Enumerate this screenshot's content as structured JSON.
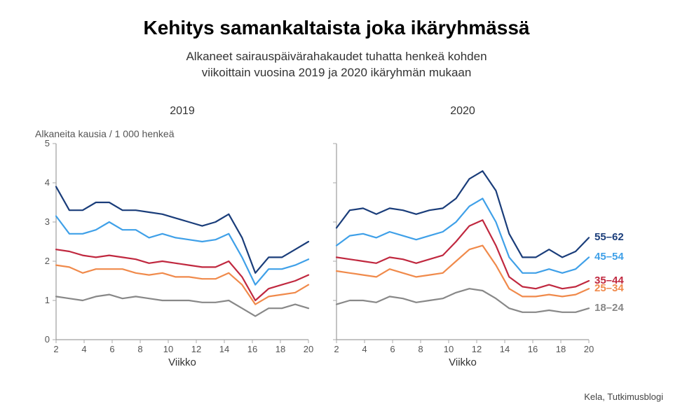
{
  "title": "Kehitys samankaltaista joka ikäryhmässä",
  "subtitle_line1": "Alkaneet sairauspäivärahakaudet tuhatta henkeä kohden",
  "subtitle_line2": "viikoittain vuosina 2019 ja 2020 ikäryhmän mukaan",
  "y_axis_label": "Alkaneita kausia / 1 000 henkeä",
  "x_axis_label": "Viikko",
  "source": "Kela, Tutkimusblogi",
  "ylim": [
    0,
    5
  ],
  "ytick_step": 1,
  "xlim": [
    2,
    20
  ],
  "xtick_step": 2,
  "line_width": 2.2,
  "background_color": "#ffffff",
  "axis_color": "#888888",
  "tick_color": "#aaaaaa",
  "tick_label_color": "#555555",
  "panels": [
    {
      "title": "2019",
      "series": [
        {
          "key": "55-62",
          "values": [
            3.9,
            3.3,
            3.3,
            3.5,
            3.5,
            3.3,
            3.3,
            3.25,
            3.2,
            3.1,
            3.0,
            2.9,
            3.0,
            3.2,
            2.6,
            1.7,
            2.1,
            2.1,
            2.3,
            2.5
          ]
        },
        {
          "key": "45-54",
          "values": [
            3.15,
            2.7,
            2.7,
            2.8,
            3.0,
            2.8,
            2.8,
            2.6,
            2.7,
            2.6,
            2.55,
            2.5,
            2.55,
            2.7,
            2.1,
            1.4,
            1.8,
            1.8,
            1.9,
            2.05
          ]
        },
        {
          "key": "35-44",
          "values": [
            2.3,
            2.25,
            2.15,
            2.1,
            2.15,
            2.1,
            2.05,
            1.95,
            2.0,
            1.95,
            1.9,
            1.85,
            1.85,
            2.0,
            1.6,
            1.0,
            1.3,
            1.4,
            1.5,
            1.65
          ]
        },
        {
          "key": "25-34",
          "values": [
            1.9,
            1.85,
            1.7,
            1.8,
            1.8,
            1.8,
            1.7,
            1.65,
            1.7,
            1.6,
            1.6,
            1.55,
            1.55,
            1.7,
            1.4,
            0.9,
            1.1,
            1.15,
            1.2,
            1.4
          ]
        },
        {
          "key": "18-24",
          "values": [
            1.1,
            1.05,
            1.0,
            1.1,
            1.15,
            1.05,
            1.1,
            1.05,
            1.0,
            1.0,
            1.0,
            0.95,
            0.95,
            1.0,
            0.8,
            0.6,
            0.8,
            0.8,
            0.9,
            0.8
          ]
        }
      ]
    },
    {
      "title": "2020",
      "series": [
        {
          "key": "55-62",
          "values": [
            2.85,
            3.3,
            3.35,
            3.2,
            3.35,
            3.3,
            3.2,
            3.3,
            3.35,
            3.6,
            4.1,
            4.3,
            3.8,
            2.7,
            2.1,
            2.1,
            2.3,
            2.1,
            2.25,
            2.6
          ]
        },
        {
          "key": "45-54",
          "values": [
            2.4,
            2.65,
            2.7,
            2.6,
            2.75,
            2.65,
            2.55,
            2.65,
            2.75,
            3.0,
            3.4,
            3.6,
            3.0,
            2.1,
            1.7,
            1.7,
            1.8,
            1.7,
            1.8,
            2.1
          ]
        },
        {
          "key": "35-44",
          "values": [
            2.1,
            2.05,
            2.0,
            1.95,
            2.1,
            2.05,
            1.95,
            2.05,
            2.15,
            2.5,
            2.9,
            3.05,
            2.4,
            1.6,
            1.35,
            1.3,
            1.4,
            1.3,
            1.35,
            1.5
          ]
        },
        {
          "key": "25-34",
          "values": [
            1.75,
            1.7,
            1.65,
            1.6,
            1.8,
            1.7,
            1.6,
            1.65,
            1.7,
            2.0,
            2.3,
            2.4,
            1.9,
            1.3,
            1.1,
            1.1,
            1.15,
            1.1,
            1.15,
            1.3
          ]
        },
        {
          "key": "18-24",
          "values": [
            0.9,
            1.0,
            1.0,
            0.95,
            1.1,
            1.05,
            0.95,
            1.0,
            1.05,
            1.2,
            1.3,
            1.25,
            1.05,
            0.8,
            0.7,
            0.7,
            0.75,
            0.7,
            0.7,
            0.8
          ]
        }
      ]
    }
  ],
  "series_style": {
    "55-62": {
      "color": "#1a3d7a",
      "label": "55–62"
    },
    "45-54": {
      "color": "#3fa0e8",
      "label": "45–54"
    },
    "35-44": {
      "color": "#c0283f",
      "label": "35–44"
    },
    "25-34": {
      "color": "#f08a4b",
      "label": "25–34"
    },
    "18-24": {
      "color": "#888888",
      "label": "18–24"
    }
  },
  "series_order": [
    "55-62",
    "45-54",
    "35-44",
    "25-34",
    "18-24"
  ]
}
